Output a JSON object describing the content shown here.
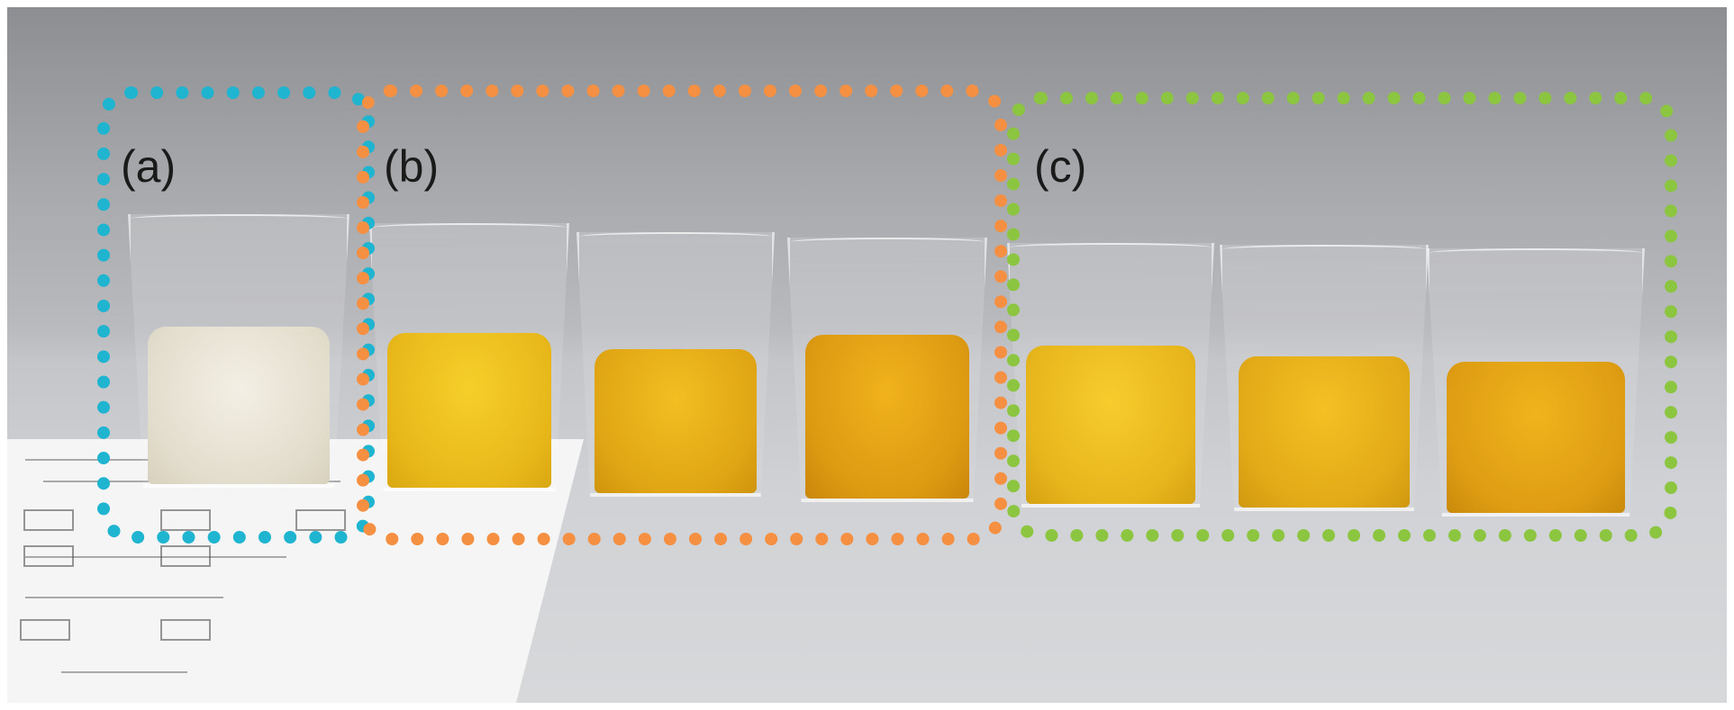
{
  "image": {
    "groups": [
      {
        "label": "(a)",
        "border_color": "#1fb4cf"
      },
      {
        "label": "(b)",
        "border_color": "#f59042"
      },
      {
        "label": "(c)",
        "border_color": "#8cc640"
      }
    ]
  }
}
